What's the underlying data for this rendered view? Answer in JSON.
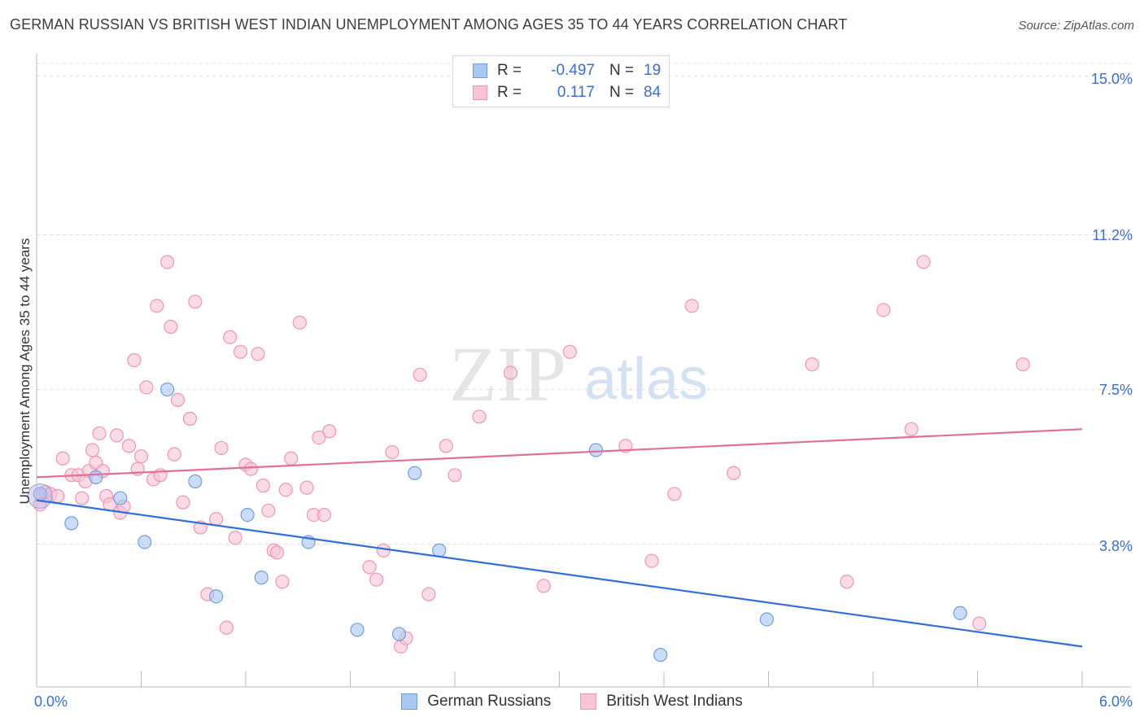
{
  "title": "GERMAN RUSSIAN VS BRITISH WEST INDIAN UNEMPLOYMENT AMONG AGES 35 TO 44 YEARS CORRELATION CHART",
  "source": "Source: ZipAtlas.com",
  "watermark": {
    "zip": "ZIP",
    "atlas": "atlas"
  },
  "legend": {
    "rows": [
      {
        "r_label": "R =",
        "r_value": "-0.497",
        "n_label": "N =",
        "n_value": "19",
        "color": "#a9c7f0",
        "border": "#6f9de0"
      },
      {
        "r_label": "R =",
        "r_value": "0.117",
        "n_label": "N =",
        "n_value": "84",
        "color": "#f9c5d5",
        "border": "#ee95b2"
      }
    ]
  },
  "bottom_legend": {
    "series1": "German Russians",
    "series2": "British West Indians"
  },
  "chart_data": {
    "type": "scatter",
    "title": "GERMAN RUSSIAN VS BRITISH WEST INDIAN UNEMPLOYMENT AMONG AGES 35 TO 44 YEARS CORRELATION CHART",
    "xlabel": "",
    "ylabel": "Unemployment Among Ages 35 to 44 years",
    "xlim": [
      0,
      6.0
    ],
    "ylim": [
      0.5,
      15.3
    ],
    "x_tick_labels": [
      "0.0%",
      "6.0%"
    ],
    "y_ticks": [
      3.8,
      7.5,
      11.2,
      15.0
    ],
    "y_tick_labels": [
      "3.8%",
      "7.5%",
      "11.2%",
      "15.0%"
    ],
    "grid": true,
    "series": [
      {
        "name": "German Russians",
        "color": "#6f9de0",
        "fill": "#a9c7f0",
        "line_color": "#2f6fd6",
        "trend": [
          [
            0.0,
            4.85
          ],
          [
            6.0,
            1.35
          ]
        ],
        "points": [
          [
            0.02,
            5.0
          ],
          [
            0.2,
            4.3
          ],
          [
            0.34,
            5.4
          ],
          [
            0.48,
            4.9
          ],
          [
            0.62,
            3.85
          ],
          [
            0.75,
            7.5
          ],
          [
            0.91,
            5.3
          ],
          [
            1.03,
            2.55
          ],
          [
            1.21,
            4.5
          ],
          [
            1.29,
            3.0
          ],
          [
            1.56,
            3.85
          ],
          [
            1.84,
            1.75
          ],
          [
            2.08,
            1.65
          ],
          [
            2.17,
            5.5
          ],
          [
            2.31,
            3.65
          ],
          [
            3.21,
            6.05
          ],
          [
            3.58,
            1.15
          ],
          [
            4.19,
            2.0
          ],
          [
            5.3,
            2.15
          ]
        ]
      },
      {
        "name": "British West Indians",
        "color": "#ee95b2",
        "fill": "#f9c5d5",
        "line_color": "#e0709a",
        "trend": [
          [
            0.0,
            5.4
          ],
          [
            6.0,
            6.55
          ]
        ],
        "points": [
          [
            0.02,
            4.75
          ],
          [
            0.05,
            5.05
          ],
          [
            0.08,
            5.0
          ],
          [
            0.12,
            4.95
          ],
          [
            0.15,
            5.85
          ],
          [
            0.2,
            5.45
          ],
          [
            0.24,
            5.45
          ],
          [
            0.26,
            4.9
          ],
          [
            0.28,
            5.3
          ],
          [
            0.3,
            5.55
          ],
          [
            0.32,
            6.05
          ],
          [
            0.34,
            5.75
          ],
          [
            0.36,
            6.45
          ],
          [
            0.38,
            5.55
          ],
          [
            0.4,
            4.95
          ],
          [
            0.42,
            4.75
          ],
          [
            0.46,
            6.4
          ],
          [
            0.48,
            4.55
          ],
          [
            0.5,
            4.7
          ],
          [
            0.53,
            6.15
          ],
          [
            0.56,
            8.2
          ],
          [
            0.58,
            5.6
          ],
          [
            0.6,
            5.9
          ],
          [
            0.63,
            7.55
          ],
          [
            0.67,
            5.35
          ],
          [
            0.69,
            9.5
          ],
          [
            0.71,
            5.45
          ],
          [
            0.75,
            10.55
          ],
          [
            0.77,
            9.0
          ],
          [
            0.79,
            5.95
          ],
          [
            0.81,
            7.25
          ],
          [
            0.84,
            4.8
          ],
          [
            0.88,
            6.8
          ],
          [
            0.91,
            9.6
          ],
          [
            0.94,
            4.2
          ],
          [
            0.98,
            2.6
          ],
          [
            1.03,
            4.4
          ],
          [
            1.06,
            6.1
          ],
          [
            1.09,
            1.8
          ],
          [
            1.11,
            8.75
          ],
          [
            1.14,
            3.95
          ],
          [
            1.17,
            8.4
          ],
          [
            1.2,
            5.7
          ],
          [
            1.23,
            5.6
          ],
          [
            1.27,
            8.35
          ],
          [
            1.3,
            5.2
          ],
          [
            1.33,
            4.6
          ],
          [
            1.36,
            3.65
          ],
          [
            1.38,
            3.6
          ],
          [
            1.41,
            2.9
          ],
          [
            1.43,
            5.1
          ],
          [
            1.46,
            5.85
          ],
          [
            1.51,
            9.1
          ],
          [
            1.55,
            5.15
          ],
          [
            1.59,
            4.5
          ],
          [
            1.62,
            6.35
          ],
          [
            1.65,
            4.5
          ],
          [
            1.68,
            6.5
          ],
          [
            1.91,
            3.25
          ],
          [
            1.95,
            2.95
          ],
          [
            1.99,
            3.65
          ],
          [
            2.04,
            6.0
          ],
          [
            2.09,
            1.35
          ],
          [
            2.12,
            1.55
          ],
          [
            2.2,
            7.85
          ],
          [
            2.25,
            2.6
          ],
          [
            2.35,
            6.15
          ],
          [
            2.4,
            5.45
          ],
          [
            2.54,
            6.85
          ],
          [
            2.72,
            7.9
          ],
          [
            2.91,
            2.8
          ],
          [
            3.06,
            8.4
          ],
          [
            3.38,
            6.15
          ],
          [
            3.53,
            3.4
          ],
          [
            3.66,
            5.0
          ],
          [
            3.76,
            9.5
          ],
          [
            4.0,
            5.5
          ],
          [
            4.45,
            8.1
          ],
          [
            4.65,
            2.9
          ],
          [
            4.86,
            9.4
          ],
          [
            5.02,
            6.55
          ],
          [
            5.09,
            10.55
          ],
          [
            5.41,
            1.9
          ],
          [
            5.66,
            8.1
          ]
        ]
      }
    ]
  }
}
